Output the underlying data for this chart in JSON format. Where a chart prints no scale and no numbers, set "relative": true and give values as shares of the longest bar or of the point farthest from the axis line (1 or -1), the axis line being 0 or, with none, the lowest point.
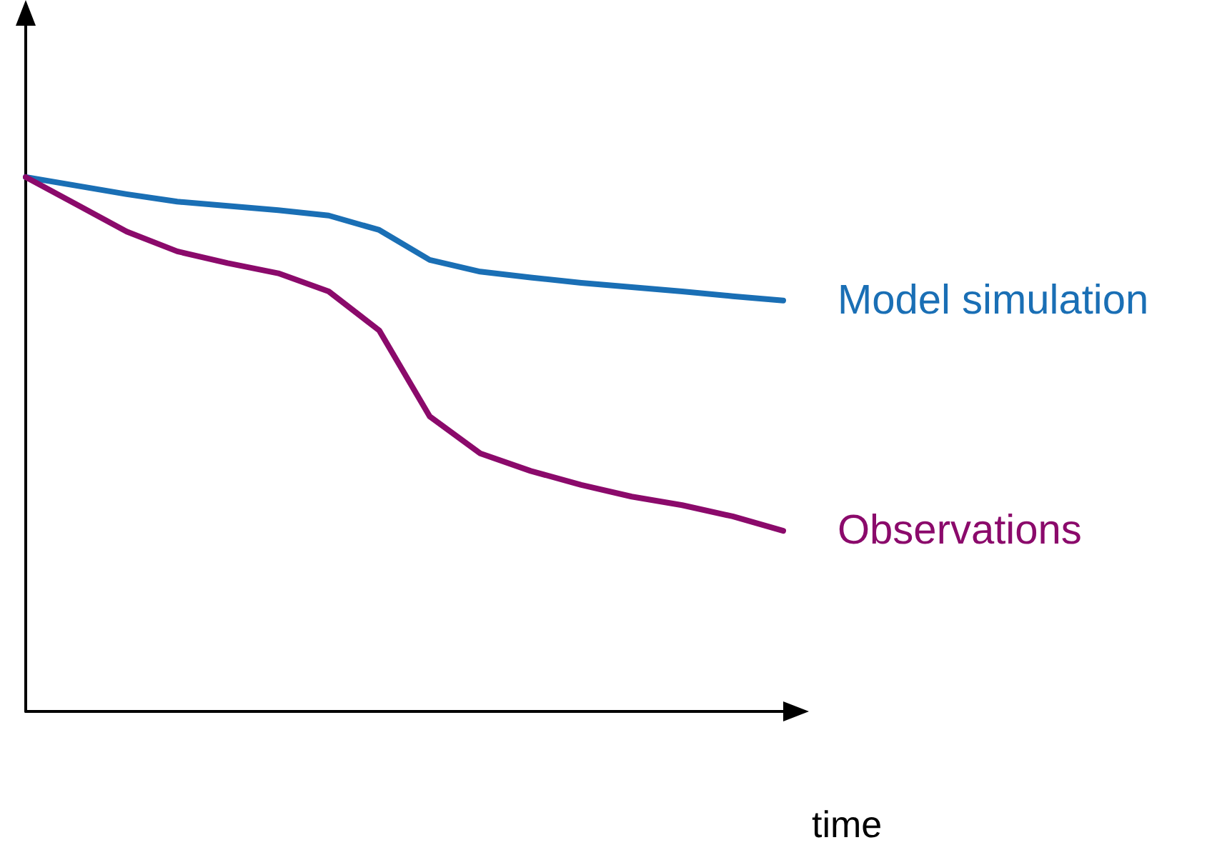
{
  "chart_data": {
    "type": "line",
    "relative": true,
    "xlabel": "time",
    "categories": [
      null,
      null,
      null,
      null,
      null,
      null,
      null,
      null,
      null,
      null,
      null,
      null,
      null,
      null,
      null,
      null
    ],
    "series": [
      {
        "name": "Model simulation",
        "color": "#1a6fb5",
        "values": [
          1,
          0.984,
          0.968,
          0.954,
          0.946,
          0.938,
          0.928,
          0.901,
          0.845,
          0.823,
          0.812,
          0.802,
          0.794,
          0.786,
          0.777,
          0.769
        ]
      },
      {
        "name": "Observations",
        "color": "#8b0a6b",
        "values": [
          1,
          0.949,
          0.898,
          0.861,
          0.839,
          0.82,
          0.786,
          0.713,
          0.552,
          0.483,
          0.45,
          0.424,
          0.402,
          0.386,
          0.365,
          0.338
        ]
      }
    ],
    "grid": false,
    "legend": false,
    "marker": "none",
    "line_style": "solid"
  }
}
